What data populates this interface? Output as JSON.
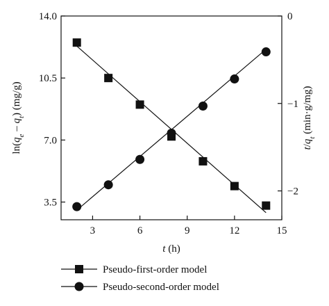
{
  "chart_data": {
    "type": "scatter",
    "x": [
      2,
      4,
      6,
      8,
      10,
      12,
      14
    ],
    "xlabel": {
      "var": "t",
      "unit": " (h)"
    },
    "xlim": [
      1,
      15
    ],
    "xticks": [
      3,
      6,
      9,
      12,
      15
    ],
    "ylabel_left": {
      "pre": "ln(",
      "qe": "q",
      "qe_sub": "e",
      "dash": " – ",
      "qt": "q",
      "qt_sub": "t",
      "post": ") (mg/g)"
    },
    "ylim_left": [
      2.5,
      14.0
    ],
    "yticks_left": [
      "14.0",
      "10.5",
      "7.0",
      "3.5"
    ],
    "ylabel_right": {
      "t": "t",
      "slash": "/",
      "q": "q",
      "q_sub": "t",
      "unit": " (min·g/mg)"
    },
    "ylim_right": [
      -2.33,
      0
    ],
    "yticks_right": [
      "0",
      "−1",
      "−2"
    ],
    "series": [
      {
        "name": "Pseudo-first-order model",
        "marker": "square",
        "axis": "left",
        "values": [
          12.5,
          10.5,
          9.0,
          7.2,
          5.8,
          4.4,
          3.3
        ],
        "fit": [
          [
            2,
            12.3
          ],
          [
            14,
            2.9
          ]
        ]
      },
      {
        "name": "Pseudo-second-order model",
        "marker": "circle",
        "axis": "right",
        "values": [
          -2.18,
          -1.93,
          -1.64,
          -1.34,
          -1.03,
          -0.72,
          -0.41
        ],
        "fit": [
          [
            2,
            -2.22
          ],
          [
            14,
            -0.38
          ]
        ]
      }
    ],
    "legend_position": "bottom",
    "grid": false
  }
}
